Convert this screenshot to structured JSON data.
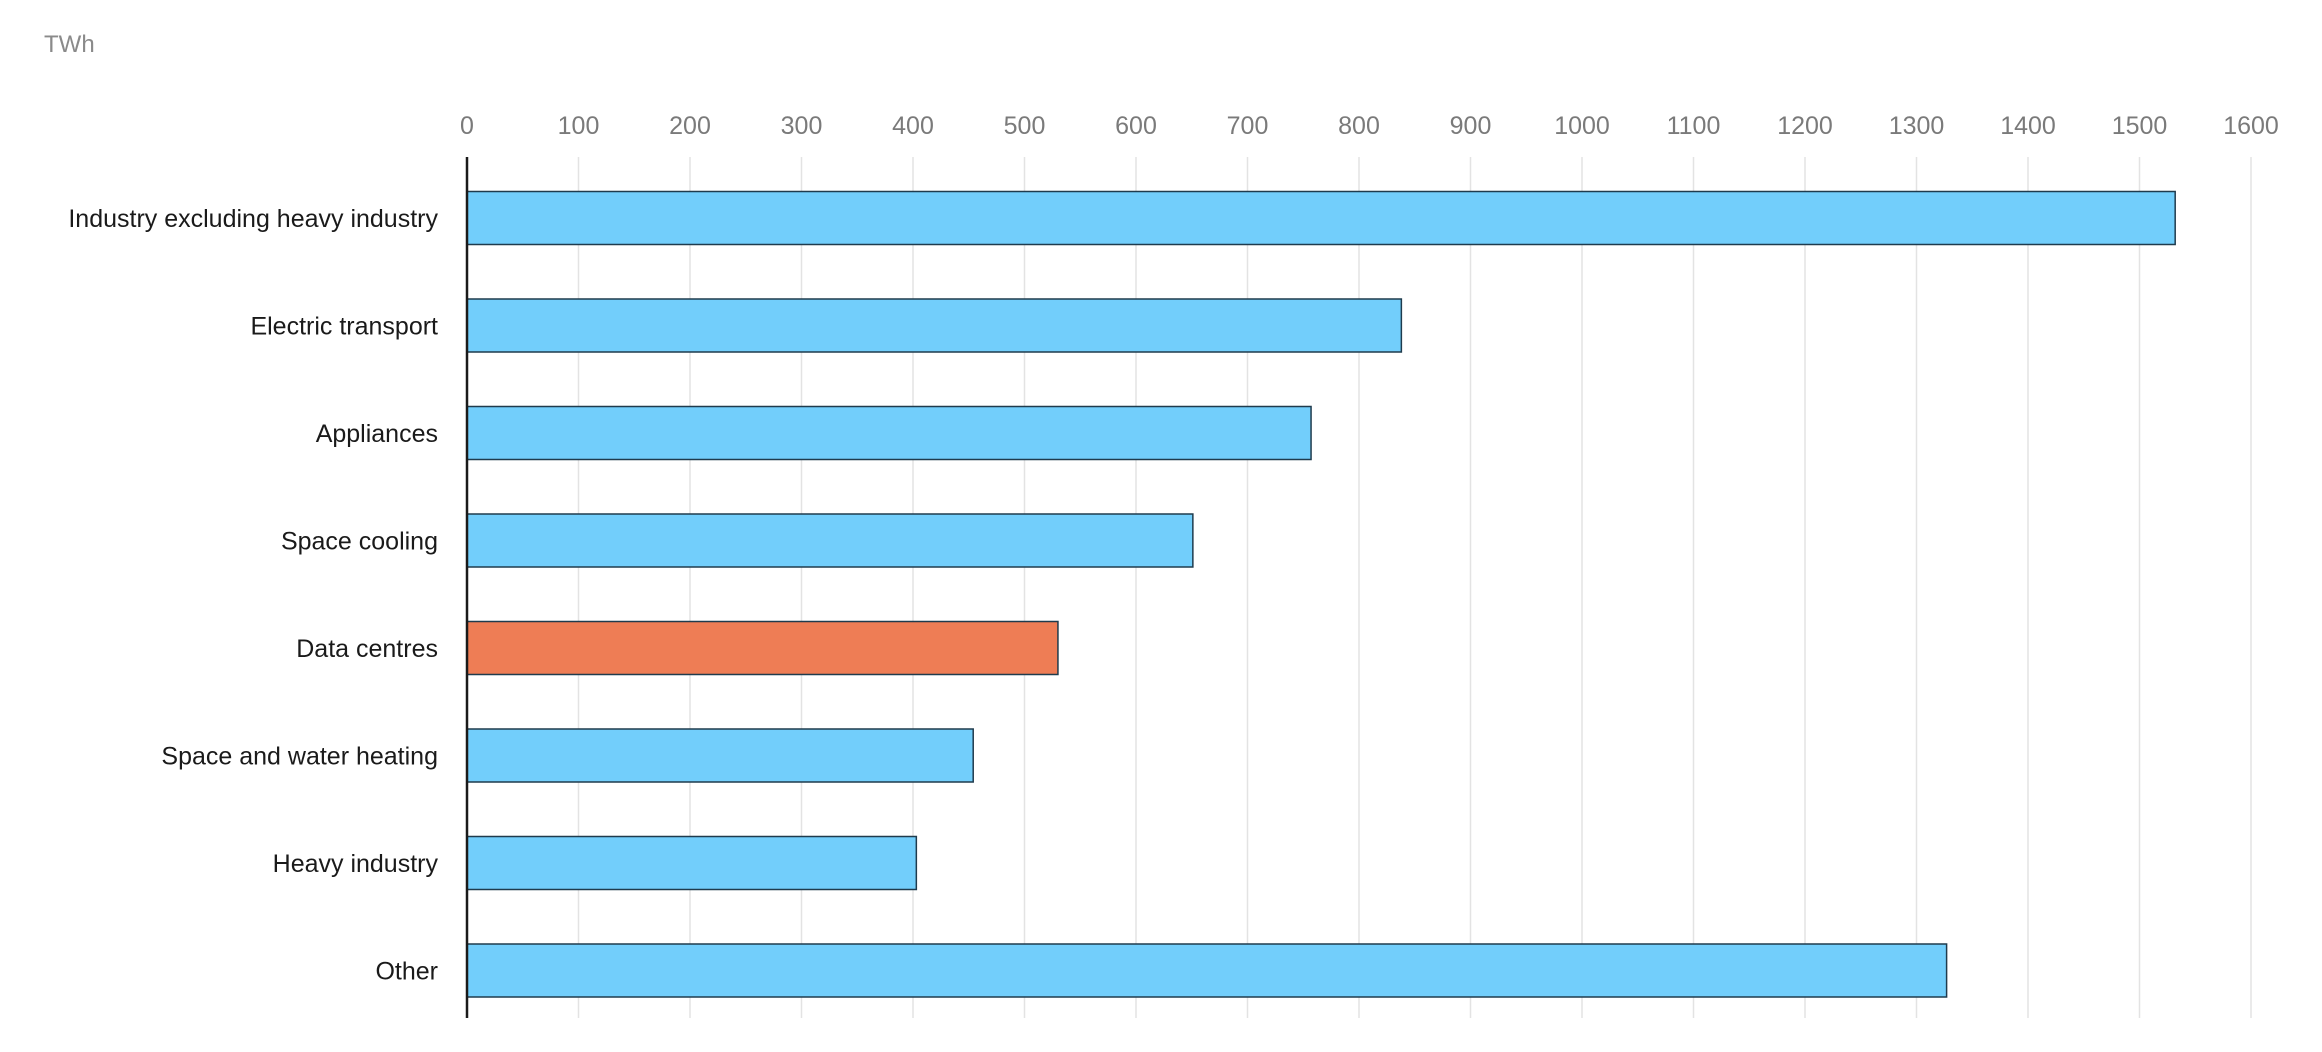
{
  "chart_data": {
    "type": "bar",
    "orientation": "horizontal",
    "unit_label": "TWh",
    "title": "",
    "xlabel": "",
    "ylabel": "",
    "xlim": [
      0,
      1600
    ],
    "x_ticks": [
      "0",
      "100",
      "200",
      "300",
      "400",
      "500",
      "600",
      "700",
      "800",
      "900",
      "1000",
      "1100",
      "1200",
      "1300",
      "1400",
      "1500",
      "1600"
    ],
    "x_tick_values": [
      0,
      100,
      200,
      300,
      400,
      500,
      600,
      700,
      800,
      900,
      1000,
      1100,
      1200,
      1300,
      1400,
      1500,
      1600
    ],
    "grid": true,
    "tick_position": "top",
    "categories": [
      "Industry excluding heavy industry",
      "Electric transport",
      "Appliances",
      "Space cooling",
      "Data centres",
      "Space and water heating",
      "Heavy industry",
      "Other"
    ],
    "values": [
      1532,
      838,
      757,
      651,
      530,
      454,
      403,
      1327
    ],
    "highlight_index": 4,
    "colors": {
      "default": "#72cefb",
      "highlight": "#ee7d55",
      "bar_border": "#1f3b4d",
      "grid": "#e3e3e3",
      "axis": "#1a1a1a"
    }
  }
}
